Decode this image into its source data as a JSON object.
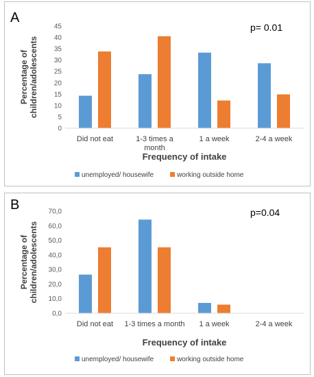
{
  "chart_data": [
    {
      "type": "bar",
      "panel_label": "A",
      "annotation": "p= 0.01",
      "categories": [
        "Did not eat",
        "1-3 times a month",
        "1 a week",
        "2-4 a week"
      ],
      "series": [
        {
          "name": "unemployed/ housewife",
          "color": "#5B9BD5",
          "values": [
            14.3,
            23.8,
            33.3,
            28.6
          ]
        },
        {
          "name": "working outside home",
          "color": "#ED7D31",
          "values": [
            33.8,
            40.5,
            12.2,
            14.9
          ]
        }
      ],
      "yticks": [
        "0",
        "5",
        "10",
        "15",
        "20",
        "25",
        "30",
        "35",
        "40",
        "45"
      ],
      "ylim": [
        0,
        45
      ],
      "xlabel": "Frequency of intake",
      "ylabel": [
        "Percentage of",
        "children/adolescents"
      ],
      "legend": "bottom",
      "grid": false
    },
    {
      "type": "bar",
      "panel_label": "B",
      "annotation": "p=0.04",
      "categories": [
        "Did not eat",
        "1-3 times a month",
        "1 a week",
        "2-4 a week"
      ],
      "series": [
        {
          "name": "unemployed/ housewife",
          "color": "#5B9BD5",
          "values": [
            26.5,
            64.2,
            7.1,
            0
          ]
        },
        {
          "name": "working outside home",
          "color": "#ED7D31",
          "values": [
            45.2,
            45.2,
            5.9,
            0
          ]
        }
      ],
      "yticks": [
        "0,0",
        "10,0",
        "20,0",
        "30,0",
        "40,0",
        "50,0",
        "60,0",
        "70,0"
      ],
      "ylim": [
        0,
        70
      ],
      "xlabel": "Frequency of intake",
      "ylabel": [
        "Percentage of",
        "children/adolescents"
      ],
      "legend": "bottom",
      "grid": false
    }
  ]
}
